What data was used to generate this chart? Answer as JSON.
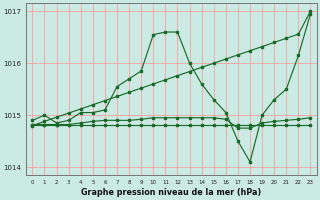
{
  "title": "Graphe pression niveau de la mer (hPa)",
  "bg_color": "#cceae4",
  "grid_color": "#f5a0a0",
  "line_color": "#1a6b2a",
  "hours": [
    0,
    1,
    2,
    3,
    4,
    5,
    6,
    7,
    8,
    9,
    10,
    11,
    12,
    13,
    14,
    15,
    16,
    17,
    18,
    19,
    20,
    21,
    22,
    23
  ],
  "line_diag": [
    1014.8,
    1014.88,
    1014.96,
    1015.04,
    1015.12,
    1015.2,
    1015.28,
    1015.36,
    1015.44,
    1015.52,
    1015.6,
    1015.68,
    1015.76,
    1015.84,
    1015.92,
    1016.0,
    1016.08,
    1016.16,
    1016.24,
    1016.32,
    1016.4,
    1016.48,
    1016.56,
    1017.0
  ],
  "line_peak": [
    1014.9,
    1015.0,
    1014.85,
    1014.9,
    1015.05,
    1015.05,
    1015.1,
    1015.55,
    1015.7,
    1015.85,
    1016.55,
    1016.6,
    1016.6,
    1016.0,
    1015.6,
    1015.3,
    1015.05,
    1014.5,
    1014.1,
    1015.0,
    1015.3,
    1015.5,
    1016.15,
    1016.95
  ],
  "line_flat1": [
    1014.82,
    1014.82,
    1014.82,
    1014.82,
    1014.85,
    1014.88,
    1014.9,
    1014.9,
    1014.9,
    1014.92,
    1014.95,
    1014.95,
    1014.95,
    1014.95,
    1014.95,
    1014.95,
    1014.92,
    1014.75,
    1014.75,
    1014.85,
    1014.88,
    1014.9,
    1014.92,
    1014.95
  ],
  "line_flat2": [
    1014.82,
    1014.82,
    1014.82,
    1014.82,
    1014.82,
    1014.82,
    1014.82,
    1014.82,
    1014.82,
    1014.82,
    1014.82,
    1014.82,
    1014.82,
    1014.82,
    1014.82,
    1014.82,
    1014.82,
    1014.82,
    1014.82,
    1014.82,
    1014.82,
    1014.82,
    1014.82,
    1014.82
  ],
  "ylim": [
    1013.85,
    1017.15
  ],
  "yticks": [
    1014,
    1015,
    1016,
    1017
  ],
  "xlim": [
    -0.5,
    23.5
  ]
}
